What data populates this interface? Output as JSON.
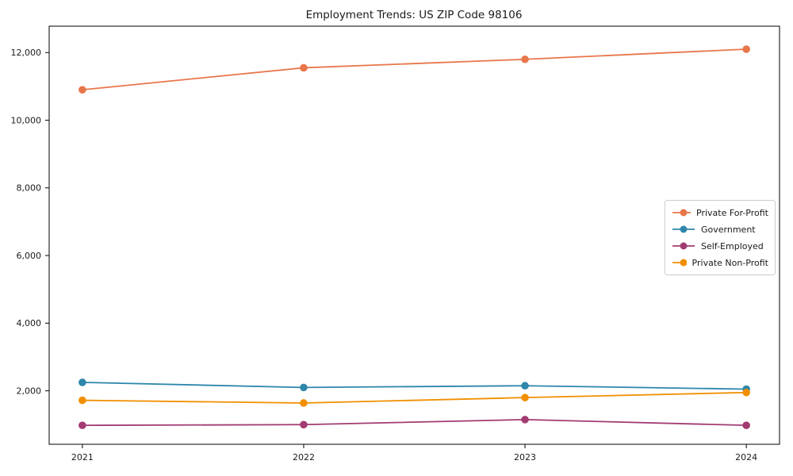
{
  "chart_data": {
    "type": "line",
    "title": "Employment Trends: US ZIP Code 98106",
    "x": [
      2021,
      2022,
      2023,
      2024
    ],
    "x_tick_labels": [
      "2021",
      "2022",
      "2023",
      "2024"
    ],
    "series": [
      {
        "name": "Private For-Profit",
        "color": "#e8764b",
        "values": [
          10900,
          11550,
          11800,
          12100
        ]
      },
      {
        "name": "Government",
        "color": "#2e86ab",
        "values": [
          2250,
          2100,
          2150,
          2050
        ]
      },
      {
        "name": "Self-Employed",
        "color": "#a23b72",
        "values": [
          980,
          1000,
          1150,
          980
        ]
      },
      {
        "name": "Private Non-Profit",
        "color": "#f18f01",
        "values": [
          1720,
          1640,
          1800,
          1950
        ]
      }
    ],
    "yticks": [
      2000,
      4000,
      6000,
      8000,
      10000,
      12000
    ],
    "ytick_labels": [
      "2,000",
      "4,000",
      "6,000",
      "8,000",
      "10,000",
      "12,000"
    ],
    "xlim": [
      2020.85,
      2024.15
    ],
    "ylim": [
      420,
      12780
    ],
    "xlabel": "",
    "ylabel": "",
    "grid": false,
    "legend_position": "center-right",
    "marker": "circle",
    "axis_color": "#000000",
    "background_color": "#ffffff"
  }
}
